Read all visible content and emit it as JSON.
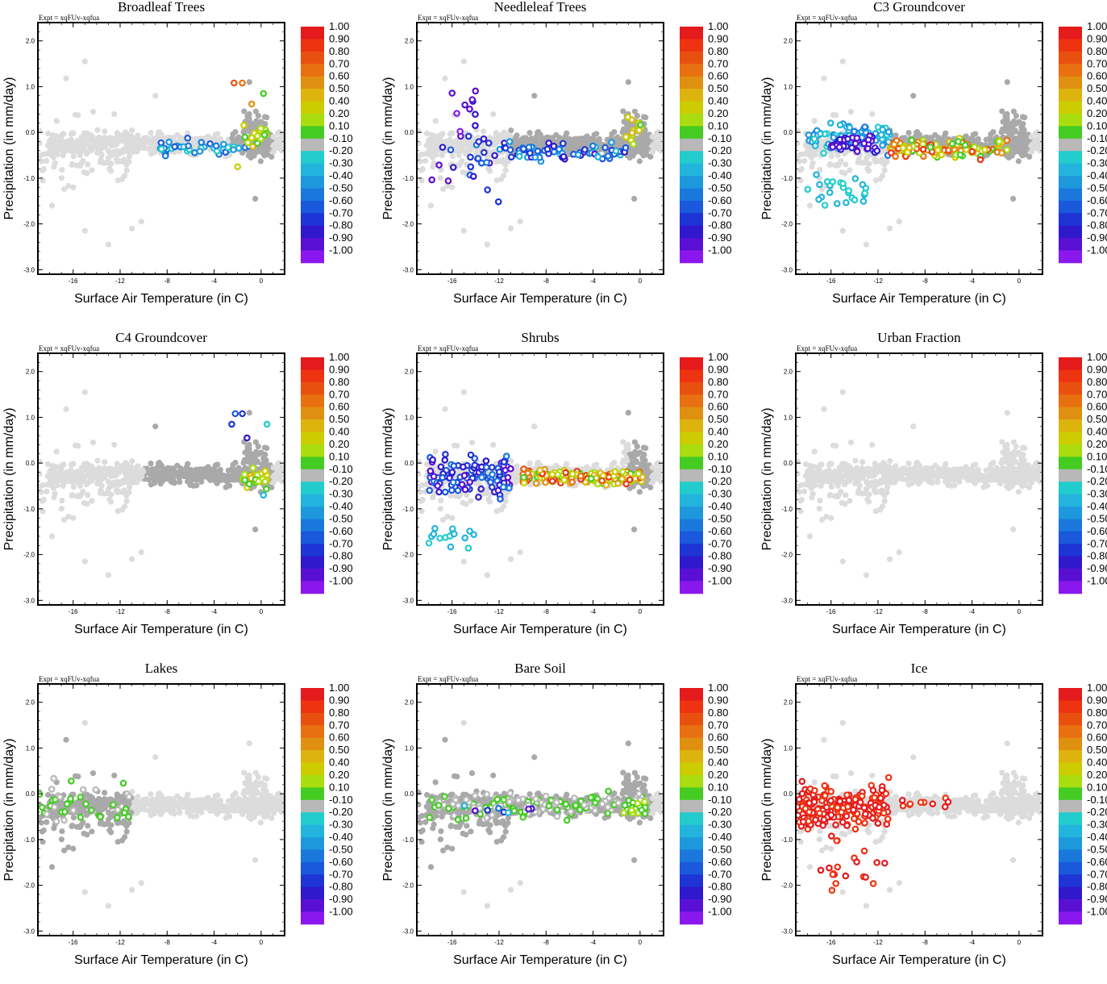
{
  "figure": {
    "expt_label": "Expt = xqFUv-xqfua",
    "xlabel": "Surface Air Temperature (in C)",
    "ylabel": "Precipitation (in mm/day)",
    "x_ticks": [
      "-16",
      "-12",
      "-8",
      "-4",
      "0"
    ],
    "y_ticks": [
      "2.0",
      "1.0",
      "0.0",
      "-1.0",
      "-2.0",
      "-3.0"
    ],
    "colorbar": {
      "labels": [
        "1.00",
        "0.90",
        "0.80",
        "0.70",
        "0.60",
        "0.50",
        "0.40",
        "0.20",
        "0.10",
        "-0.10",
        "-0.20",
        "-0.30",
        "-0.40",
        "-0.50",
        "-0.60",
        "-0.70",
        "-0.80",
        "-0.90",
        "-1.00"
      ],
      "colors": [
        "#e41a1c",
        "#ee3311",
        "#e85010",
        "#e87010",
        "#e09010",
        "#ddb30d",
        "#cccc00",
        "#aadd10",
        "#44cc22",
        "#b8b8b8",
        "#22cccc",
        "#22b4dc",
        "#1e98dc",
        "#1a78dc",
        "#1a58dc",
        "#1e34d4",
        "#3018cc",
        "#5a10d4",
        "#8a18ee"
      ]
    }
  },
  "chart_data": [
    {
      "type": "scatter",
      "title": "Broadleaf Trees",
      "xlabel": "Surface Air Temperature (in C)",
      "ylabel": "Precipitation (in mm/day)",
      "xlim": [
        -19,
        2
      ],
      "ylim": [
        -3.1,
        2.4
      ],
      "color_variable": "correlation",
      "color_range": [
        -1.0,
        1.0
      ],
      "pattern": "broadleaf"
    },
    {
      "type": "scatter",
      "title": "Needleleaf Trees",
      "xlabel": "Surface Air Temperature (in C)",
      "ylabel": "Precipitation (in mm/day)",
      "xlim": [
        -19,
        2
      ],
      "ylim": [
        -3.1,
        2.4
      ],
      "color_variable": "correlation",
      "color_range": [
        -1.0,
        1.0
      ],
      "pattern": "needleleaf"
    },
    {
      "type": "scatter",
      "title": "C3 Groundcover",
      "xlabel": "Surface Air Temperature (in C)",
      "ylabel": "Precipitation (in mm/day)",
      "xlim": [
        -19,
        2
      ],
      "ylim": [
        -3.1,
        2.4
      ],
      "color_variable": "correlation",
      "color_range": [
        -1.0,
        1.0
      ],
      "pattern": "c3"
    },
    {
      "type": "scatter",
      "title": "C4 Groundcover",
      "xlabel": "Surface Air Temperature (in C)",
      "ylabel": "Precipitation (in mm/day)",
      "xlim": [
        -19,
        2
      ],
      "ylim": [
        -3.1,
        2.4
      ],
      "color_variable": "correlation",
      "color_range": [
        -1.0,
        1.0
      ],
      "pattern": "c4"
    },
    {
      "type": "scatter",
      "title": "Shrubs",
      "xlabel": "Surface Air Temperature (in C)",
      "ylabel": "Precipitation (in mm/day)",
      "xlim": [
        -19,
        2
      ],
      "ylim": [
        -3.1,
        2.4
      ],
      "color_variable": "correlation",
      "color_range": [
        -1.0,
        1.0
      ],
      "pattern": "shrubs"
    },
    {
      "type": "scatter",
      "title": "Urban Fraction",
      "xlabel": "Surface Air Temperature (in C)",
      "ylabel": "Precipitation (in mm/day)",
      "xlim": [
        -19,
        2
      ],
      "ylim": [
        -3.1,
        2.4
      ],
      "color_variable": "correlation",
      "color_range": [
        -1.0,
        1.0
      ],
      "pattern": "urban"
    },
    {
      "type": "scatter",
      "title": "Lakes",
      "xlabel": "Surface Air Temperature (in C)",
      "ylabel": "Precipitation (in mm/day)",
      "xlim": [
        -19,
        2
      ],
      "ylim": [
        -3.1,
        2.4
      ],
      "color_variable": "correlation",
      "color_range": [
        -1.0,
        1.0
      ],
      "pattern": "lakes"
    },
    {
      "type": "scatter",
      "title": "Bare Soil",
      "xlabel": "Surface Air Temperature (in C)",
      "ylabel": "Precipitation (in mm/day)",
      "xlim": [
        -19,
        2
      ],
      "ylim": [
        -3.1,
        2.4
      ],
      "color_variable": "correlation",
      "color_range": [
        -1.0,
        1.0
      ],
      "pattern": "baresoil"
    },
    {
      "type": "scatter",
      "title": "Ice",
      "xlabel": "Surface Air Temperature (in C)",
      "ylabel": "Precipitation (in mm/day)",
      "xlim": [
        -19,
        2
      ],
      "ylim": [
        -3.1,
        2.4
      ],
      "color_variable": "correlation",
      "color_range": [
        -1.0,
        1.0
      ],
      "pattern": "ice"
    }
  ]
}
